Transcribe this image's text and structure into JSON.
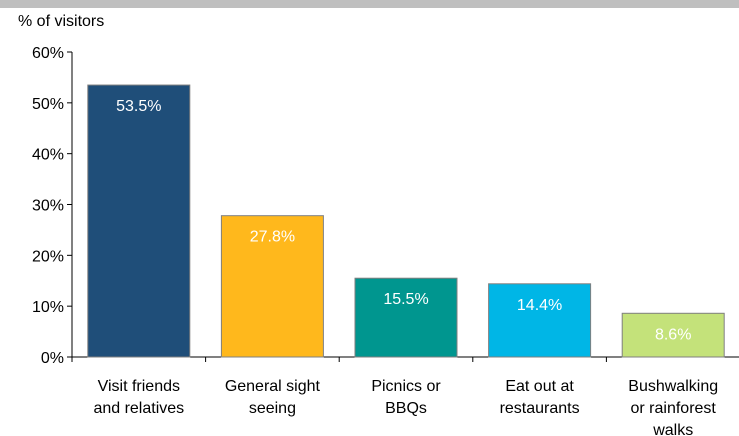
{
  "chart_data": {
    "type": "bar",
    "ylabel": "% of visitors",
    "ylim": [
      0,
      60
    ],
    "yticks": [
      "0%",
      "10%",
      "20%",
      "30%",
      "40%",
      "50%",
      "60%"
    ],
    "yticks_values": [
      0,
      10,
      20,
      30,
      40,
      50,
      60
    ],
    "categories": [
      "Visit friends and relatives",
      "General sight seeing",
      "Picnics or BBQs",
      "Eat out at restaurants",
      "Bushwalking or rainforest walks"
    ],
    "category_lines": [
      [
        "Visit friends",
        "and relatives"
      ],
      [
        "General sight",
        "seeing"
      ],
      [
        "Picnics or",
        "BBQs"
      ],
      [
        "Eat out at",
        "restaurants"
      ],
      [
        "Bushwalking",
        "or rainforest",
        "walks"
      ]
    ],
    "values": [
      53.5,
      27.8,
      15.5,
      14.4,
      8.6
    ],
    "data_labels": [
      "53.5%",
      "27.8%",
      "15.5%",
      "14.4%",
      "8.6%"
    ],
    "colors": [
      "#1f4e79",
      "#ffb81c",
      "#00968f",
      "#00b6e6",
      "#c4e27a"
    ],
    "data_label_colors": [
      "#ffffff",
      "#ffffff",
      "#ffffff",
      "#ffffff",
      "#ffffff"
    ],
    "grid": false,
    "legend": "none"
  }
}
